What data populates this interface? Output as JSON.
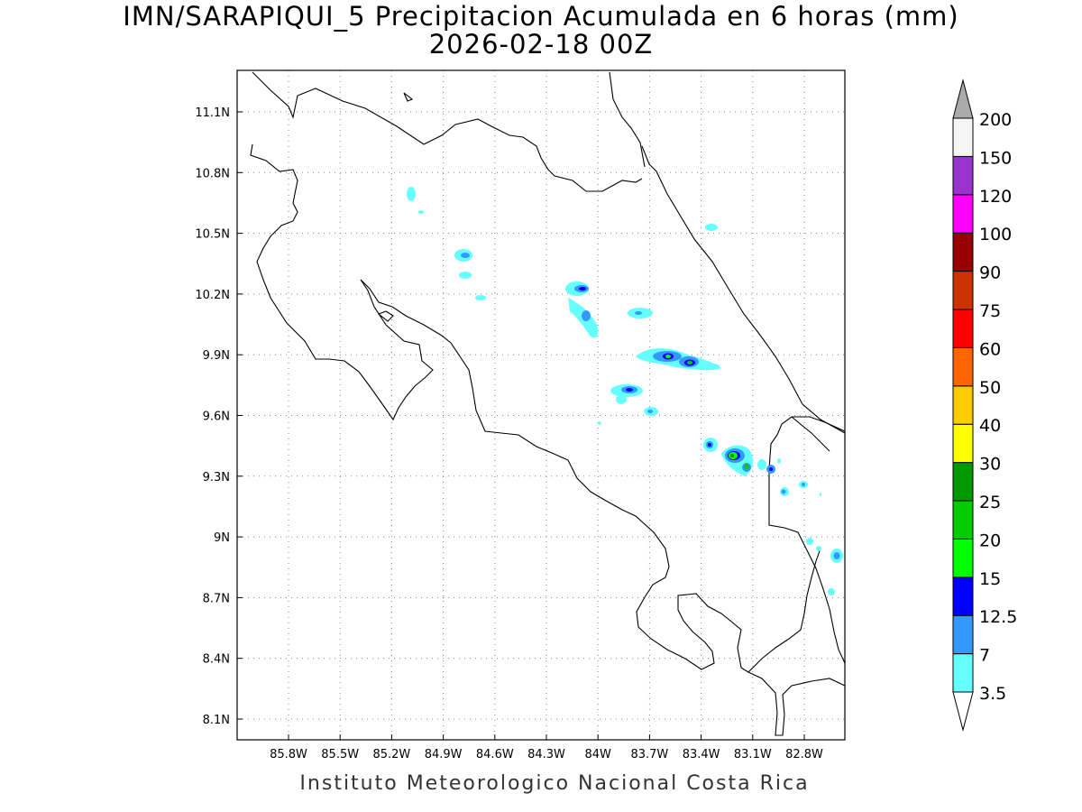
{
  "map": {
    "title_line1": "IMN/SARAPIQUI_5 Precipitacion Acumulada en 6 horas (mm)",
    "title_line2": "2026-02-18 00Z",
    "footer": "Instituto Meteorologico Nacional Costa Rica",
    "lon_range": [
      -86.0,
      -83.0
    ],
    "lat_range": [
      8.0,
      11.3
    ],
    "lon_ticks": [
      "85.8W",
      "85.5W",
      "85.2W",
      "84.9W",
      "84.6W",
      "84.3W",
      "84W",
      "83.7W",
      "83.4W",
      "83.1W",
      "82.8W"
    ],
    "lat_ticks": [
      "11.1N",
      "10.8N",
      "10.5N",
      "10.2N",
      "9.9N",
      "9.6N",
      "9.3N",
      "9N",
      "8.7N",
      "8.4N",
      "8.1N"
    ],
    "grid": "dotted"
  },
  "legend": {
    "labels": [
      "3.5",
      "7",
      "12.5",
      "15",
      "20",
      "25",
      "30",
      "40",
      "50",
      "60",
      "75",
      "90",
      "100",
      "120",
      "150",
      "200"
    ],
    "colors": [
      "#66ffff",
      "#3399ff",
      "#0000ff",
      "#00ff00",
      "#00cc00",
      "#009900",
      "#ffff00",
      "#ffcc00",
      "#ff6600",
      "#ff0000",
      "#cc3300",
      "#990000",
      "#ff00ff",
      "#9933cc",
      "#f5f5f5",
      "#aaaaaa"
    ]
  },
  "precip_colors": {
    "light": "#66ffff",
    "moderate": "#3399ff",
    "heavy": "#0000ff",
    "very_heavy": "#00ff00"
  }
}
